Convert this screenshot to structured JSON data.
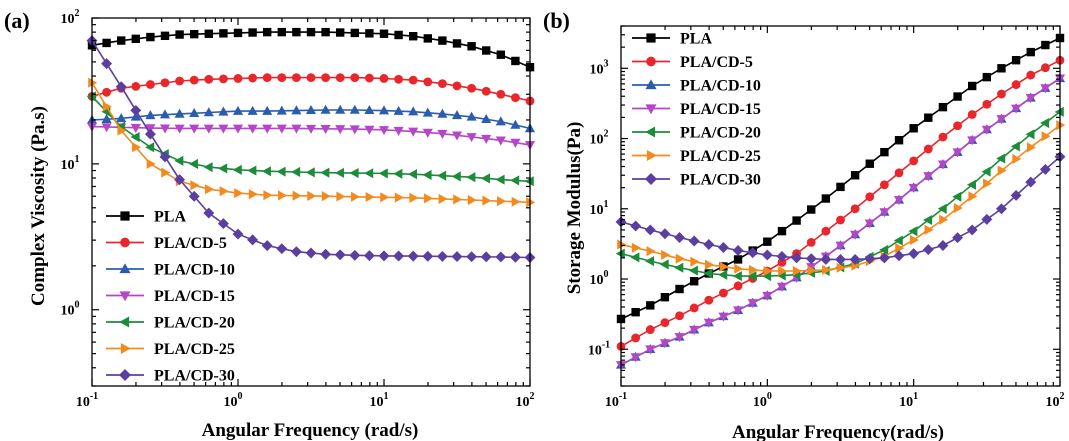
{
  "chart_data": [
    {
      "type": "line",
      "panel_label": "(a)",
      "xlabel": "Angular Frequency (rad/s)",
      "ylabel": "Complex Viscosity (Pa.s)",
      "xscale": "log",
      "yscale": "log",
      "xlim": [
        0.1,
        100
      ],
      "ylim": [
        0.3,
        100
      ],
      "legend_position": "bottom-left",
      "grid": false,
      "x": [
        0.1,
        0.158,
        0.251,
        0.398,
        0.631,
        1,
        1.585,
        2.512,
        3.981,
        6.31,
        10,
        15.85,
        25.12,
        39.81,
        63.1,
        100
      ],
      "series": [
        {
          "name": "PLA",
          "marker": "square",
          "color": "#000000",
          "values": [
            65,
            70,
            74,
            77,
            78,
            79,
            80,
            80,
            80,
            79,
            78,
            75,
            70,
            64,
            56,
            46
          ]
        },
        {
          "name": "PLA/CD-5",
          "marker": "circle",
          "color": "#e8262b",
          "values": [
            29,
            33,
            35,
            37,
            38,
            38.5,
            39,
            39,
            39,
            39,
            38.5,
            37.5,
            35.5,
            33,
            30,
            27
          ]
        },
        {
          "name": "PLA/CD-10",
          "marker": "triangle-up",
          "color": "#2a5db0",
          "values": [
            20,
            20.5,
            21.5,
            22,
            22.5,
            23,
            23,
            23.2,
            23.4,
            23.4,
            23.2,
            22.8,
            22,
            21,
            19.5,
            17.5
          ]
        },
        {
          "name": "PLA/CD-15",
          "marker": "triangle-down",
          "color": "#b546c8",
          "values": [
            18,
            17.8,
            17.6,
            17.5,
            17.5,
            17.5,
            17.5,
            17.5,
            17.4,
            17.3,
            17.1,
            16.7,
            16.1,
            15.3,
            14.5,
            13.5
          ]
        },
        {
          "name": "PLA/CD-20",
          "marker": "triangle-left",
          "color": "#1d8b3a",
          "values": [
            29,
            18,
            13,
            10.5,
            9.5,
            9.1,
            8.9,
            8.8,
            8.7,
            8.65,
            8.6,
            8.5,
            8.3,
            8.1,
            7.8,
            7.6
          ]
        },
        {
          "name": "PLA/CD-25",
          "marker": "triangle-right",
          "color": "#f28a1d",
          "values": [
            36,
            17,
            10,
            7.6,
            6.7,
            6.3,
            6.1,
            6.05,
            6,
            5.95,
            5.9,
            5.85,
            5.75,
            5.65,
            5.55,
            5.45
          ]
        },
        {
          "name": "PLA/CD-30",
          "marker": "diamond",
          "color": "#5b3fa0",
          "values": [
            70,
            34,
            16,
            7.8,
            4.6,
            3.3,
            2.75,
            2.5,
            2.4,
            2.36,
            2.34,
            2.33,
            2.32,
            2.31,
            2.3,
            2.28
          ]
        }
      ]
    },
    {
      "type": "line",
      "panel_label": "(b)",
      "xlabel": "Angular Frequency(rad/s)",
      "ylabel": "Storage Modulus(Pa)",
      "xscale": "log",
      "yscale": "log",
      "xlim": [
        0.1,
        100
      ],
      "ylim": [
        0.03,
        4000
      ],
      "legend_position": "top-left",
      "grid": false,
      "x": [
        0.1,
        0.158,
        0.251,
        0.398,
        0.631,
        1,
        1.585,
        2.512,
        3.981,
        6.31,
        10,
        15.85,
        25.12,
        39.81,
        63.1,
        100
      ],
      "series": [
        {
          "name": "PLA",
          "marker": "square",
          "color": "#000000",
          "values": [
            0.27,
            0.42,
            0.72,
            1.2,
            1.9,
            3.4,
            6.8,
            14,
            30,
            64,
            140,
            280,
            560,
            1000,
            1700,
            2700
          ]
        },
        {
          "name": "PLA/CD-5",
          "marker": "circle",
          "color": "#e8262b",
          "values": [
            0.11,
            0.19,
            0.3,
            0.5,
            0.8,
            1.3,
            2.3,
            4.8,
            10,
            22,
            48,
            105,
            220,
            430,
            800,
            1300
          ]
        },
        {
          "name": "PLA/CD-10",
          "marker": "triangle-up",
          "color": "#2a5db0",
          "values": [
            0.06,
            0.1,
            0.15,
            0.24,
            0.36,
            0.58,
            1.05,
            2.1,
            4.3,
            9,
            20,
            43,
            95,
            190,
            380,
            720
          ]
        },
        {
          "name": "PLA/CD-15",
          "marker": "triangle-down",
          "color": "#b546c8",
          "values": [
            0.06,
            0.1,
            0.15,
            0.24,
            0.36,
            0.58,
            1.05,
            2.1,
            4.3,
            9,
            20,
            43,
            95,
            190,
            380,
            720
          ]
        },
        {
          "name": "PLA/CD-20",
          "marker": "triangle-left",
          "color": "#1d8b3a",
          "values": [
            2.3,
            1.8,
            1.45,
            1.2,
            1.1,
            1.1,
            1.15,
            1.3,
            1.65,
            2.6,
            4.8,
            10,
            22,
            52,
            115,
            240
          ]
        },
        {
          "name": "PLA/CD-25",
          "marker": "triangle-right",
          "color": "#f28a1d",
          "values": [
            3.1,
            2.5,
            1.95,
            1.6,
            1.4,
            1.3,
            1.3,
            1.35,
            1.55,
            2.1,
            3.6,
            7,
            15,
            35,
            75,
            155
          ]
        },
        {
          "name": "PLA/CD-30",
          "marker": "diamond",
          "color": "#5b3fa0",
          "values": [
            6.5,
            5,
            3.9,
            3.1,
            2.55,
            2.2,
            2,
            1.9,
            1.9,
            2,
            2.3,
            3,
            5,
            10,
            24,
            55
          ]
        }
      ]
    }
  ]
}
